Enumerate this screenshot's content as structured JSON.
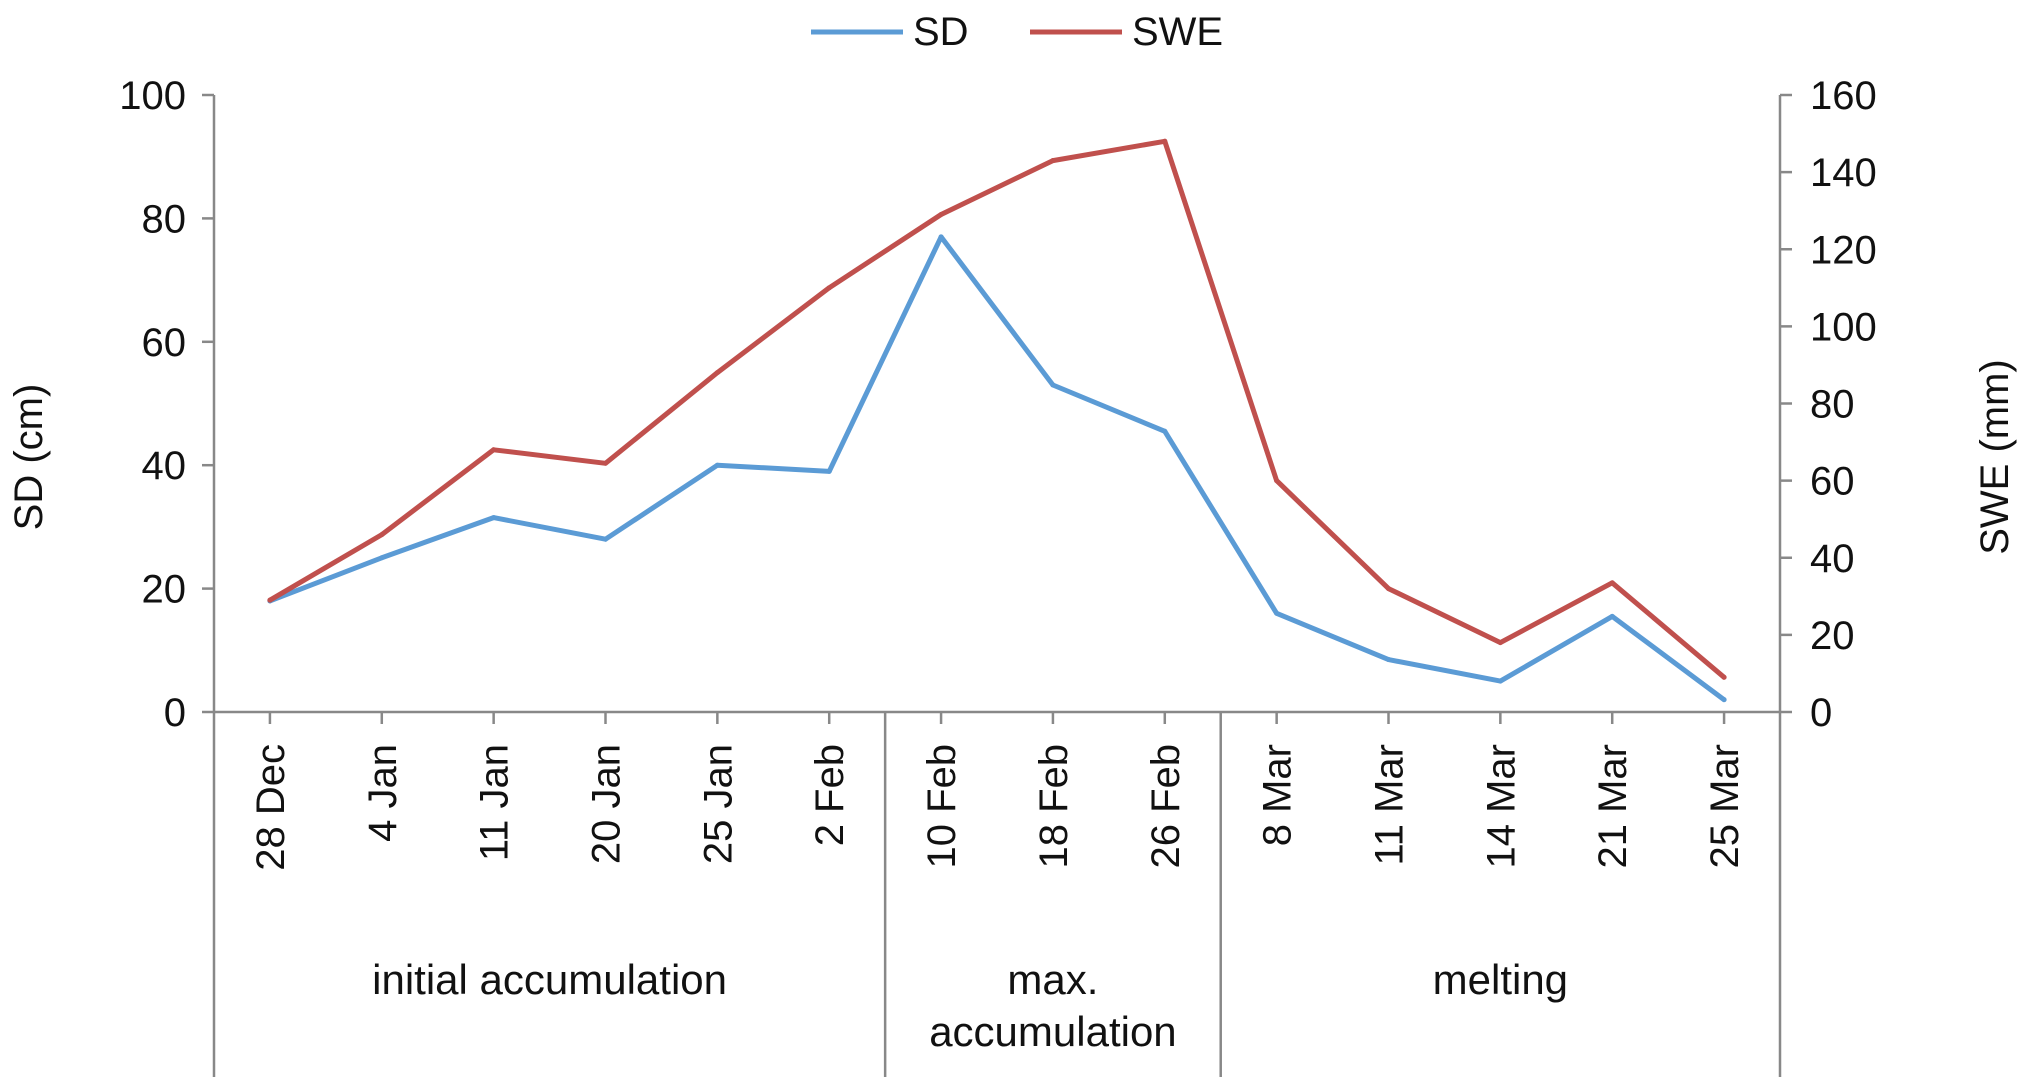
{
  "chart_data": {
    "type": "line",
    "categories": [
      "28 Dec",
      "4 Jan",
      "11 Jan",
      "20 Jan",
      "25 Jan",
      "2 Feb",
      "10 Feb",
      "18 Feb",
      "26 Feb",
      "8 Mar",
      "11 Mar",
      "14 Mar",
      "21 Mar",
      "25 Mar"
    ],
    "groups": [
      {
        "label": "initial accumulation",
        "lines": [
          "initial accumulation"
        ],
        "start": 0,
        "end": 5
      },
      {
        "label": "max. accumulation",
        "lines": [
          "max.",
          "accumulation"
        ],
        "start": 6,
        "end": 8
      },
      {
        "label": "melting",
        "lines": [
          "melting"
        ],
        "start": 9,
        "end": 13
      }
    ],
    "series": [
      {
        "name": "SD",
        "axis": "left",
        "color": "#5b9bd5",
        "values": [
          18,
          25,
          31.5,
          28,
          40,
          39,
          77,
          53,
          45.5,
          16,
          8.5,
          5,
          15.5,
          2
        ]
      },
      {
        "name": "SWE",
        "axis": "right",
        "color": "#c0504d",
        "values": [
          29,
          46,
          68,
          64.5,
          88,
          110,
          129,
          143,
          148,
          60,
          32,
          18,
          33.5,
          9
        ]
      }
    ],
    "ylabel": "SD (cm)",
    "ylabel_right": "SWE (mm)",
    "ylim": [
      0,
      100
    ],
    "ylim_right": [
      0,
      160
    ],
    "yticks": [
      "0",
      "20",
      "40",
      "60",
      "80",
      "100"
    ],
    "yticks_right": [
      "0",
      "20",
      "40",
      "60",
      "80",
      "100",
      "120",
      "140",
      "160"
    ],
    "grid": false,
    "legend_position": "top-center"
  }
}
